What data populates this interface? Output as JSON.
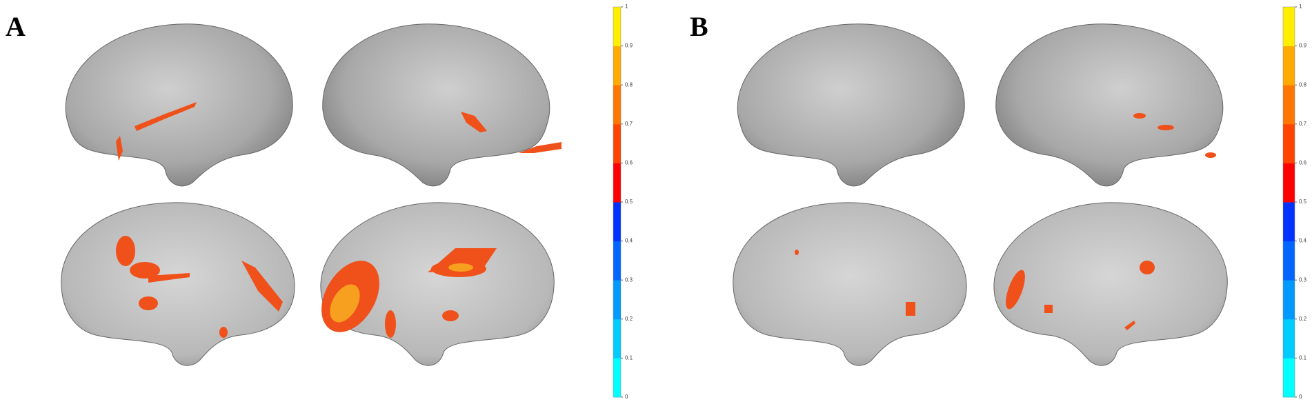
{
  "panels": [
    {
      "label": "A",
      "colorbar": {
        "lim": [
          0,
          1
        ],
        "ticks": [
          0,
          0.1,
          0.2,
          0.3,
          0.4,
          0.5,
          0.6,
          0.7,
          0.8,
          0.9,
          1
        ],
        "colors": [
          "#00ffff",
          "#00ccff",
          "#0099ff",
          "#0066ff",
          "#0033ff",
          "#ff0000",
          "#ff4400",
          "#ff7700",
          "#ffaa00",
          "#ffee00"
        ]
      }
    },
    {
      "label": "B",
      "colorbar": {
        "lim": [
          0,
          1
        ],
        "ticks": [
          0,
          0.1,
          0.2,
          0.3,
          0.4,
          0.5,
          0.6,
          0.7,
          0.8,
          0.9,
          1
        ],
        "colors": [
          "#00ffff",
          "#00ccff",
          "#0099ff",
          "#0066ff",
          "#0033ff",
          "#ff0000",
          "#ff4400",
          "#ff7700",
          "#ffaa00",
          "#ffee00"
        ]
      }
    }
  ]
}
